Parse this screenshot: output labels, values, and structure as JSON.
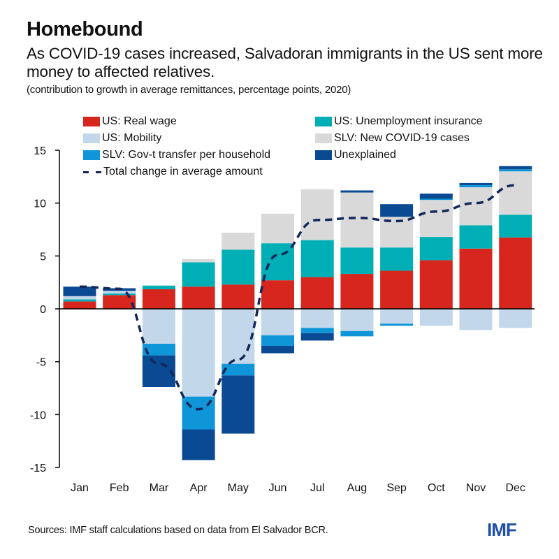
{
  "title": "Homebound",
  "subtitle": "As COVID-19 cases increased, Salvadoran immigrants in the US sent more money to affected relatives.",
  "unit_note": "(contribution to growth in average remittances, percentage points, 2020)",
  "source": "Sources: IMF staff calculations based on data from El Salvador BCR.",
  "logo": "IMF",
  "legend": [
    {
      "label": "US: Real wage",
      "color": "#d7261e"
    },
    {
      "label": "US: Unemployment insurance",
      "color": "#00aeb5"
    },
    {
      "label": "US: Mobility",
      "color": "#c2d7ea"
    },
    {
      "label": "SLV: New COVID-19 cases",
      "color": "#d9d9d9"
    },
    {
      "label": "SLV: Gov-t transfer per household",
      "color": "#0f96d8"
    },
    {
      "label": "Unexplained",
      "color": "#0a4a92"
    },
    {
      "label": "Total change in average amount",
      "color": "#12275a"
    }
  ],
  "chart_data": {
    "type": "bar",
    "stacked": true,
    "title": "Homebound",
    "xlabel": "",
    "ylabel": "",
    "ylim": [
      -15,
      15
    ],
    "yticks": [
      15,
      10,
      5,
      0,
      -5,
      -10,
      -15
    ],
    "categories": [
      "Jan",
      "Feb",
      "Mar",
      "Apr",
      "May",
      "Jun",
      "Jul",
      "Aug",
      "Sep",
      "Oct",
      "Nov",
      "Dec"
    ],
    "series": [
      {
        "name": "US: Real wage",
        "color": "#d7261e",
        "values": [
          0.7,
          1.3,
          1.85,
          2.1,
          2.3,
          2.7,
          3.0,
          3.3,
          3.6,
          4.6,
          5.7,
          6.75
        ]
      },
      {
        "name": "US: Unemployment insurance",
        "color": "#00aeb5",
        "values": [
          0.2,
          0.15,
          0.35,
          2.3,
          3.3,
          3.5,
          3.5,
          2.5,
          2.2,
          2.2,
          2.2,
          2.15
        ]
      },
      {
        "name": "US: Mobility",
        "color": "#c2d7ea",
        "values": [
          0.3,
          0.25,
          -3.3,
          -8.3,
          -5.2,
          -2.5,
          -1.8,
          -2.1,
          -1.4,
          -1.6,
          -2.0,
          -1.8
        ]
      },
      {
        "name": "SLV: New COVID-19 cases",
        "color": "#d9d9d9",
        "values": [
          0.0,
          0.0,
          0.0,
          0.3,
          1.6,
          2.8,
          4.8,
          5.2,
          2.9,
          3.5,
          3.6,
          4.1
        ]
      },
      {
        "name": "SLV: Gov-t transfer per household",
        "color": "#0f96d8",
        "values": [
          0.0,
          0.0,
          -1.1,
          -3.1,
          -1.1,
          -1.0,
          -0.5,
          -0.5,
          -0.2,
          0.1,
          0.2,
          0.2
        ]
      },
      {
        "name": "Unexplained",
        "color": "#0a4a92",
        "values": [
          0.9,
          0.25,
          -3.0,
          -2.9,
          -5.5,
          -0.7,
          -0.7,
          0.2,
          1.2,
          0.5,
          0.2,
          0.3
        ]
      }
    ],
    "line": {
      "name": "Total change in average amount",
      "color": "#12275a",
      "style": "dashed",
      "values": [
        2.1,
        1.9,
        -5.2,
        -9.5,
        -4.8,
        5.1,
        8.4,
        8.6,
        8.3,
        9.2,
        10.0,
        11.7
      ]
    },
    "grid": false,
    "legend_position": "top"
  }
}
